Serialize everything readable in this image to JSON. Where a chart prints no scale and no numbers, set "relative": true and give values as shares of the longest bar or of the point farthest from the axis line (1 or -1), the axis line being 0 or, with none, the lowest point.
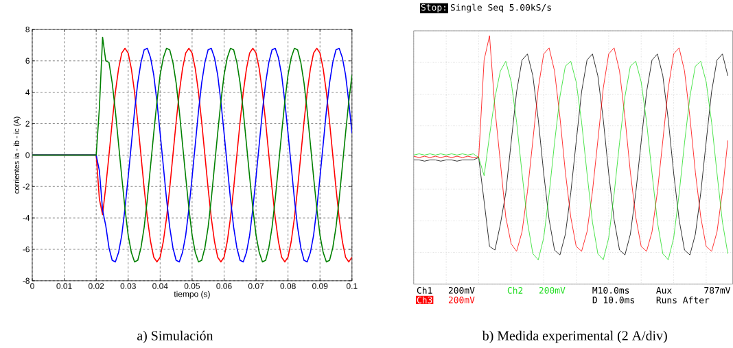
{
  "chart_data": [
    {
      "type": "line",
      "title": "a) Simulación",
      "xlabel": "tiempo (s)",
      "ylabel": "corrientes ia - ib - ic (A)",
      "x": [
        0,
        0.02,
        0.021,
        0.022,
        0.023,
        0.024,
        0.025,
        0.026,
        0.027,
        0.028,
        0.029,
        0.03,
        0.031,
        0.032,
        0.033,
        0.034,
        0.035,
        0.036,
        0.037,
        0.038,
        0.039,
        0.04,
        0.041,
        0.042,
        0.043,
        0.044,
        0.045,
        0.046,
        0.047,
        0.048,
        0.049,
        0.05,
        0.051,
        0.052,
        0.053,
        0.054,
        0.055,
        0.056,
        0.057,
        0.058,
        0.059,
        0.06,
        0.061,
        0.062,
        0.063,
        0.064,
        0.065,
        0.066,
        0.067,
        0.068,
        0.069,
        0.07,
        0.071,
        0.072,
        0.073,
        0.074,
        0.075,
        0.076,
        0.077,
        0.078,
        0.079,
        0.08,
        0.081,
        0.082,
        0.083,
        0.084,
        0.085,
        0.086,
        0.087,
        0.088,
        0.089,
        0.09,
        0.091,
        0.092,
        0.093,
        0.094,
        0.095,
        0.096,
        0.097,
        0.098,
        0.099,
        0.1
      ],
      "series": [
        {
          "color": "#ff0000",
          "values": [
            0,
            0,
            -2.8,
            -3.8,
            -2.0,
            0,
            2.1,
            4.0,
            5.5,
            6.5,
            6.8,
            6.5,
            5.5,
            4.0,
            2.1,
            0,
            -2.1,
            -4.0,
            -5.5,
            -6.5,
            -6.8,
            -6.5,
            -5.5,
            -4.0,
            -2.1,
            0,
            2.1,
            4.0,
            5.5,
            6.5,
            6.8,
            6.5,
            5.5,
            4.0,
            2.1,
            0,
            -2.1,
            -4.0,
            -5.5,
            -6.5,
            -6.8,
            -6.5,
            -5.5,
            -4.0,
            -2.1,
            0,
            2.1,
            4.0,
            5.5,
            6.5,
            6.8,
            6.5,
            5.5,
            4.0,
            2.1,
            0,
            -2.1,
            -4.0,
            -5.5,
            -6.5,
            -6.8,
            -6.5,
            -5.5,
            -4.0,
            -2.1,
            0,
            2.1,
            4.0,
            5.5,
            6.5,
            6.8,
            6.5,
            5.5,
            4.0,
            2.1,
            0,
            -2.1,
            -4.0,
            -5.5,
            -6.5,
            -6.8,
            -6.5
          ]
        },
        {
          "color": "#0000ff",
          "values": [
            0,
            0,
            -1.0,
            -3.5,
            -4.5,
            -5.9,
            -6.7,
            -6.8,
            -6.2,
            -5.1,
            -3.4,
            -1.4,
            0.7,
            2.8,
            4.6,
            5.9,
            6.7,
            6.8,
            6.2,
            5.1,
            3.4,
            1.4,
            -0.7,
            -2.8,
            -4.6,
            -5.9,
            -6.7,
            -6.8,
            -6.2,
            -5.1,
            -3.4,
            -1.4,
            0.7,
            2.8,
            4.6,
            5.9,
            6.7,
            6.8,
            6.2,
            5.1,
            3.4,
            1.4,
            -0.7,
            -2.8,
            -4.6,
            -5.9,
            -6.7,
            -6.8,
            -6.2,
            -5.1,
            -3.4,
            -1.4,
            0.7,
            2.8,
            4.6,
            5.9,
            6.7,
            6.8,
            6.2,
            5.1,
            3.4,
            1.4,
            -0.7,
            -2.8,
            -4.6,
            -5.9,
            -6.7,
            -6.8,
            -6.2,
            -5.1,
            -3.4,
            -1.4,
            0.7,
            2.8,
            4.6,
            5.9,
            6.7,
            6.8,
            6.2,
            5.1,
            3.4,
            1.4
          ]
        },
        {
          "color": "#008000",
          "values": [
            0,
            0,
            3.0,
            7.5,
            6.0,
            5.9,
            4.6,
            2.8,
            0.7,
            -1.4,
            -3.4,
            -5.1,
            -6.2,
            -6.8,
            -6.7,
            -5.9,
            -4.6,
            -2.8,
            -0.7,
            1.4,
            3.4,
            5.1,
            6.2,
            6.8,
            6.7,
            5.9,
            4.6,
            2.8,
            0.7,
            -1.4,
            -3.4,
            -5.1,
            -6.2,
            -6.8,
            -6.7,
            -5.9,
            -4.6,
            -2.8,
            -0.7,
            1.4,
            3.4,
            5.1,
            6.2,
            6.8,
            6.7,
            5.9,
            4.6,
            2.8,
            0.7,
            -1.4,
            -3.4,
            -5.1,
            -6.2,
            -6.8,
            -6.7,
            -5.9,
            -4.6,
            -2.8,
            -0.7,
            1.4,
            3.4,
            5.1,
            6.2,
            6.8,
            6.7,
            5.9,
            4.6,
            2.8,
            0.7,
            -1.4,
            -3.4,
            -5.1,
            -6.2,
            -6.8,
            -6.7,
            -5.9,
            -4.6,
            -2.8,
            -0.7,
            1.4,
            3.4,
            5.1
          ]
        }
      ],
      "xlim": [
        0,
        0.1
      ],
      "ylim": [
        -8,
        8
      ],
      "xticks": [
        0,
        0.01,
        0.02,
        0.03,
        0.04,
        0.05,
        0.06,
        0.07,
        0.08,
        0.09,
        0.1
      ],
      "yticks": [
        -8,
        -6,
        -4,
        -2,
        0,
        2,
        4,
        6,
        8
      ],
      "grid": true
    },
    {
      "type": "line",
      "title": "b) Medida experimental (2 A/div)",
      "relative": true,
      "grid": true,
      "categories": [
        null,
        null,
        null,
        null,
        null,
        null,
        null,
        null,
        null,
        null,
        null,
        null,
        null,
        null,
        null,
        null,
        null,
        null,
        null,
        null,
        null,
        null,
        null,
        null,
        null,
        null,
        null,
        null,
        null,
        null,
        null,
        null,
        null,
        null,
        null,
        null,
        null,
        null,
        null,
        null,
        null,
        null,
        null,
        null,
        null,
        null,
        null,
        null,
        null,
        null,
        null,
        null,
        null,
        null,
        null,
        null,
        null,
        null,
        null
      ],
      "series": [
        {
          "color": "#000000",
          "values": [
            -0.02,
            -0.02,
            -0.03,
            -0.02,
            -0.02,
            -0.03,
            -0.02,
            -0.02,
            -0.03,
            -0.02,
            -0.02,
            -0.02,
            0,
            -0.36,
            -0.73,
            -0.76,
            -0.55,
            -0.29,
            0.13,
            0.54,
            0.8,
            0.85,
            0.67,
            0.31,
            -0.13,
            -0.51,
            -0.76,
            -0.8,
            -0.63,
            -0.29,
            0.13,
            0.54,
            0.8,
            0.85,
            0.67,
            0.31,
            -0.13,
            -0.51,
            -0.76,
            -0.8,
            -0.63,
            -0.29,
            0.13,
            0.54,
            0.8,
            0.85,
            0.67,
            0.31,
            -0.13,
            -0.51,
            -0.76,
            -0.8,
            -0.63,
            -0.29,
            0.13,
            0.54,
            0.8,
            0.85,
            0.67
          ]
        },
        {
          "color": "#ff0000",
          "values": [
            0.01,
            0,
            0.01,
            0,
            0.01,
            0,
            0.01,
            0,
            0.01,
            0,
            0.01,
            0,
            0,
            0.8,
            1.0,
            0.4,
            -0.04,
            -0.49,
            -0.71,
            -0.77,
            -0.61,
            -0.28,
            0.14,
            0.57,
            0.85,
            0.9,
            0.71,
            0.33,
            -0.12,
            -0.49,
            -0.73,
            -0.77,
            -0.61,
            -0.28,
            0.14,
            0.57,
            0.85,
            0.9,
            0.71,
            0.33,
            -0.12,
            -0.49,
            -0.73,
            -0.77,
            -0.61,
            -0.28,
            0.14,
            0.57,
            0.85,
            0.9,
            0.71,
            0.33,
            -0.12,
            -0.49,
            -0.73,
            -0.77,
            -0.61,
            -0.28,
            0.14
          ]
        },
        {
          "color": "#22dd22",
          "values": [
            0.02,
            0.03,
            0.02,
            0.03,
            0.02,
            0.03,
            0.02,
            0.03,
            0.02,
            0.03,
            0.02,
            0.03,
            0,
            -0.15,
            0.18,
            0.49,
            0.71,
            0.79,
            0.62,
            0.29,
            -0.13,
            -0.53,
            -0.79,
            -0.84,
            -0.66,
            -0.3,
            0.12,
            0.5,
            0.75,
            0.79,
            0.62,
            0.29,
            -0.13,
            -0.53,
            -0.79,
            -0.84,
            -0.66,
            -0.3,
            0.12,
            0.5,
            0.75,
            0.79,
            0.62,
            0.29,
            -0.13,
            -0.53,
            -0.79,
            -0.84,
            -0.66,
            -0.3,
            0.12,
            0.5,
            0.75,
            0.79,
            0.62,
            0.29,
            -0.13,
            -0.53,
            -0.79
          ]
        }
      ],
      "annotations": [
        "Stop:",
        "Single Seq 5.00kS/s",
        "Ch1",
        "200mV",
        "Ch2",
        "200mV",
        "M10.0ms",
        "Aux",
        "787mV",
        "Ch3",
        "200mV",
        "D 10.0ms",
        "Runs After"
      ]
    }
  ]
}
